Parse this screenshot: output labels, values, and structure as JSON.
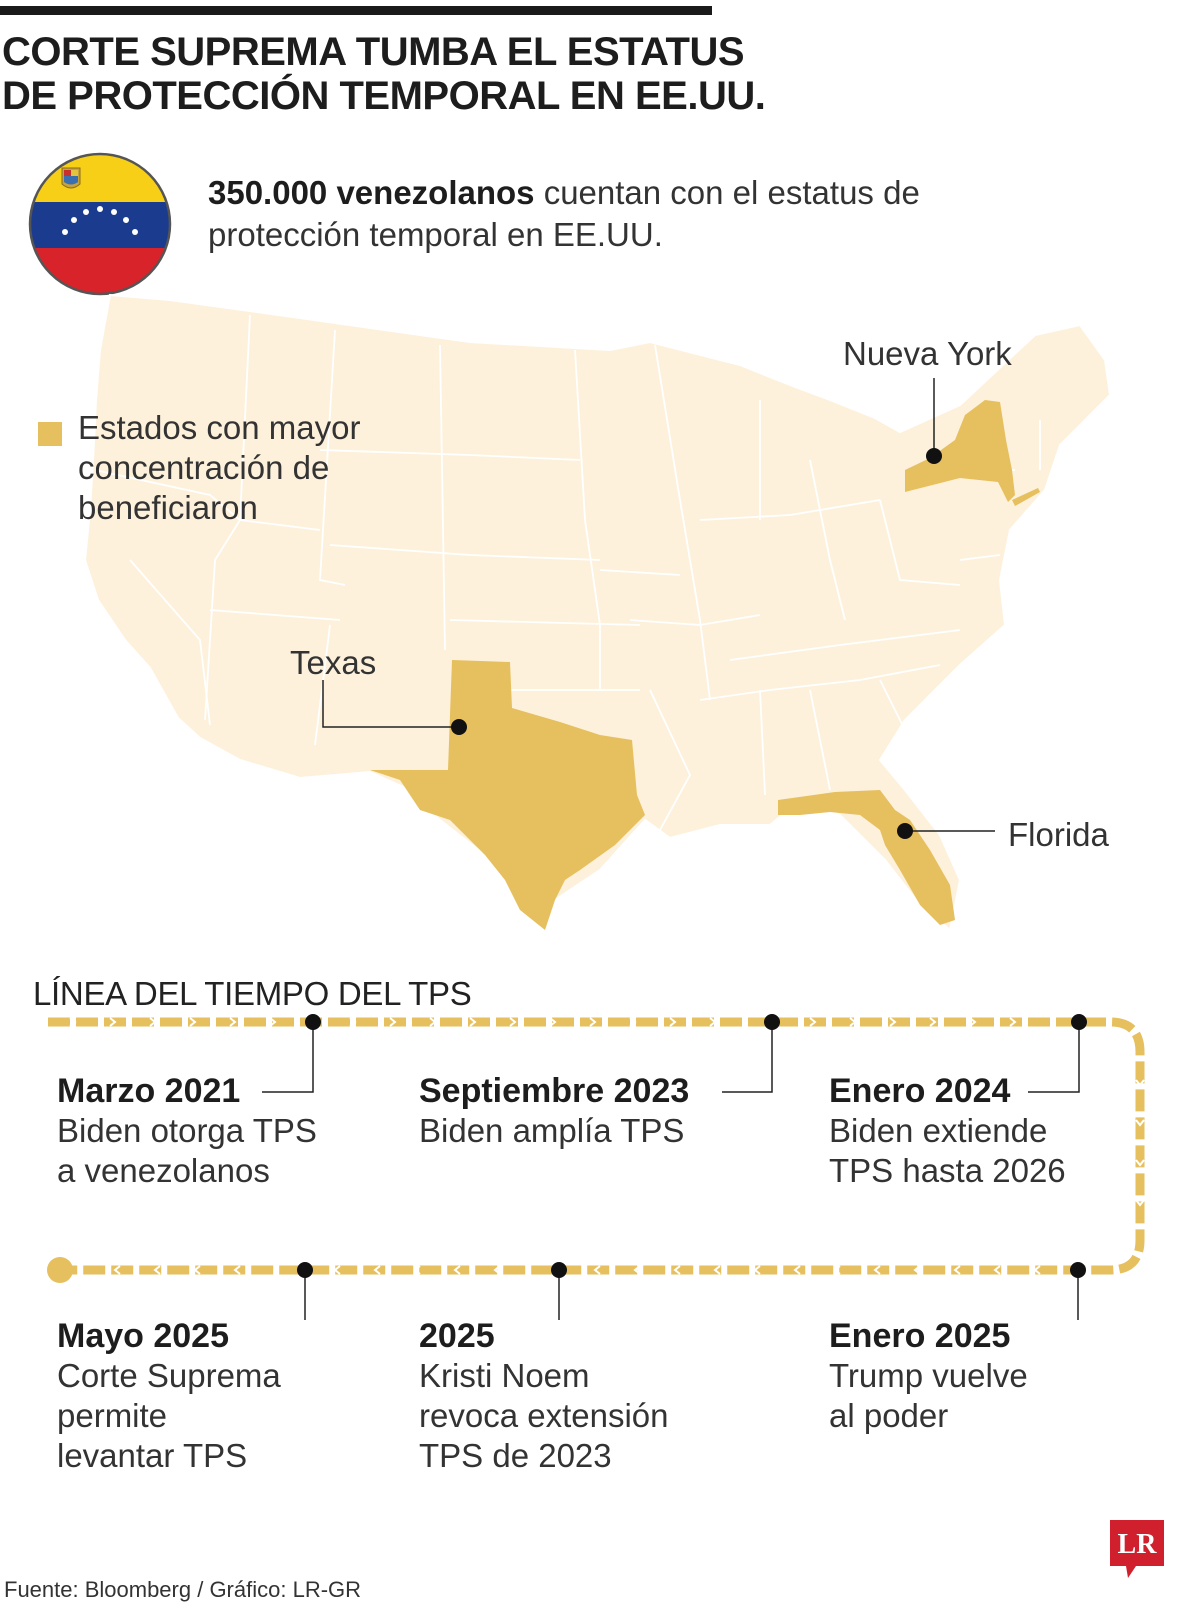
{
  "title_lines": [
    "CORTE SUPREMA TUMBA EL ESTATUS",
    "DE PROTECCIÓN TEMPORAL EN EE.UU."
  ],
  "headline": {
    "bold": "350.000 venezolanos",
    "rest": " cuentan con el estatus de protección temporal en EE.UU."
  },
  "flag_icon": "venezuela-flag-icon",
  "colors": {
    "highlight_state": "#e6bf5e",
    "base_map": "#fdf1dc",
    "timeline": "#e6bf5e",
    "title": "#1d1d1d",
    "logo_red": "#d0202d",
    "flag_yellow": "#f6cf16",
    "flag_blue": "#1b3b8f",
    "flag_red": "#d8232a"
  },
  "legend": {
    "label": "Estados con mayor concentración de beneficiaron"
  },
  "map": {
    "highlighted_states": [
      "Nueva York",
      "Texas",
      "Florida"
    ],
    "labels": {
      "new_york": "Nueva York",
      "texas": "Texas",
      "florida": "Florida"
    }
  },
  "timeline": {
    "title": "LÍNEA DEL TIEMPO DEL TPS",
    "events": [
      {
        "date": "Marzo 2021",
        "desc": "Biden otorga TPS\na venezolanos"
      },
      {
        "date": "Septiembre 2023",
        "desc": "Biden amplía TPS"
      },
      {
        "date": "Enero 2024",
        "desc": "Biden extiende\nTPS hasta 2026"
      },
      {
        "date": "Enero 2025",
        "desc": "Trump vuelve\nal poder"
      },
      {
        "date": "2025",
        "desc": "Kristi Noem\nrevoca extensión\nTPS de 2023"
      },
      {
        "date": "Mayo 2025",
        "desc": "Corte Suprema\npermite\nlevantar TPS"
      }
    ]
  },
  "source": "Fuente: Bloomberg / Gráfico: LR-GR",
  "logo": {
    "text": "LR",
    "icon": "lr-logo-icon"
  }
}
